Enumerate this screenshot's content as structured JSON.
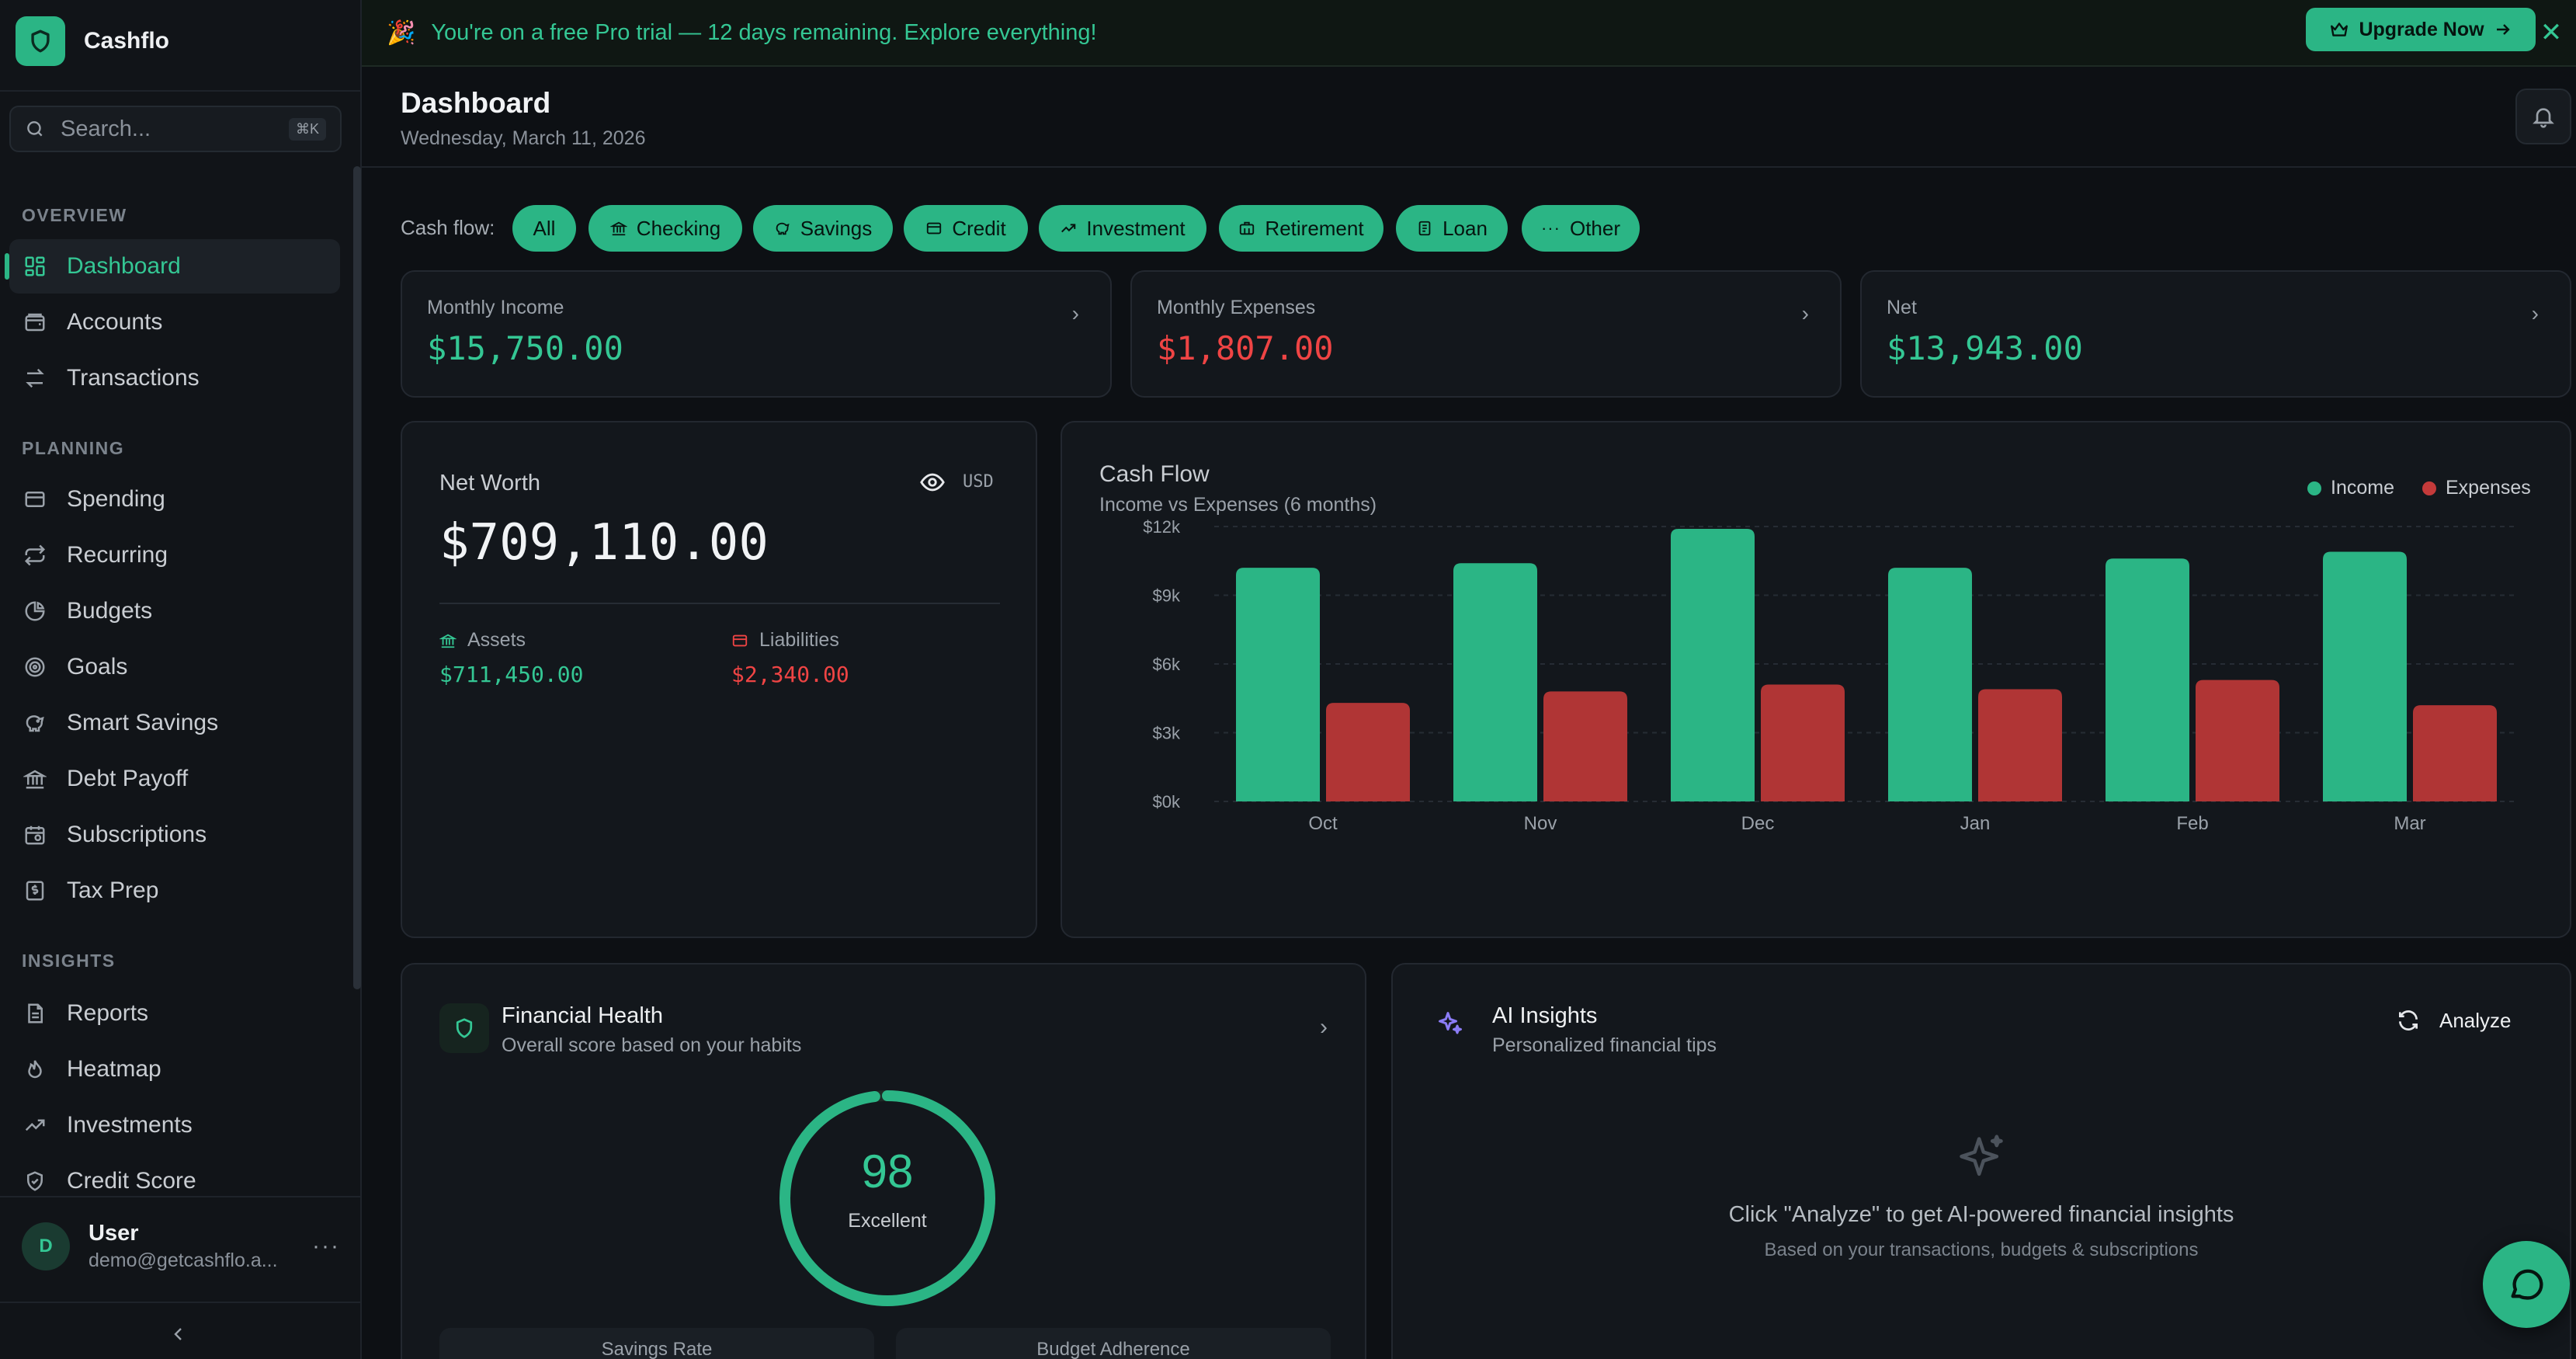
{
  "app": {
    "name": "Cashflo"
  },
  "search": {
    "placeholder": "Search...",
    "shortcut": "⌘K"
  },
  "sidebar": {
    "sections": [
      {
        "title": "OVERVIEW",
        "items": [
          {
            "label": "Dashboard",
            "icon": "dashboard-icon",
            "active": true
          },
          {
            "label": "Accounts",
            "icon": "wallet-icon"
          },
          {
            "label": "Transactions",
            "icon": "arrows-icon"
          }
        ]
      },
      {
        "title": "PLANNING",
        "items": [
          {
            "label": "Spending",
            "icon": "card-icon"
          },
          {
            "label": "Recurring",
            "icon": "repeat-icon"
          },
          {
            "label": "Budgets",
            "icon": "pie-icon"
          },
          {
            "label": "Goals",
            "icon": "target-icon"
          },
          {
            "label": "Smart Savings",
            "icon": "piggy-icon"
          },
          {
            "label": "Debt Payoff",
            "icon": "bank-icon"
          },
          {
            "label": "Subscriptions",
            "icon": "calendar-icon"
          },
          {
            "label": "Tax Prep",
            "icon": "receipt-icon"
          }
        ]
      },
      {
        "title": "INSIGHTS",
        "items": [
          {
            "label": "Reports",
            "icon": "document-icon"
          },
          {
            "label": "Heatmap",
            "icon": "flame-icon"
          },
          {
            "label": "Investments",
            "icon": "trend-icon"
          },
          {
            "label": "Credit Score",
            "icon": "shield-check-icon"
          }
        ]
      }
    ]
  },
  "user": {
    "initial": "D",
    "name": "User",
    "email": "demo@getcashflo.a..."
  },
  "banner": {
    "emoji": "🎉",
    "text": "You're on a free Pro trial — 12 days remaining. Explore everything!",
    "cta": "Upgrade Now"
  },
  "header": {
    "title": "Dashboard",
    "date": "Wednesday, March 11, 2026"
  },
  "filters": {
    "label": "Cash flow:",
    "chips": [
      "All",
      "Checking",
      "Savings",
      "Credit",
      "Investment",
      "Retirement",
      "Loan",
      "Other"
    ]
  },
  "stats": [
    {
      "label": "Monthly Income",
      "value": "$15,750.00",
      "tone": "green"
    },
    {
      "label": "Monthly Expenses",
      "value": "$1,807.00",
      "tone": "red"
    },
    {
      "label": "Net",
      "value": "$13,943.00",
      "tone": "green"
    }
  ],
  "net_worth": {
    "title": "Net Worth",
    "currency": "USD",
    "value": "$709,110.00",
    "assets_label": "Assets",
    "assets_value": "$711,450.00",
    "liabilities_label": "Liabilities",
    "liabilities_value": "$2,340.00"
  },
  "cash_flow_card": {
    "title": "Cash Flow",
    "subtitle": "Income vs Expenses (6 months)"
  },
  "chart_data": {
    "type": "bar",
    "title": "Cash Flow",
    "subtitle": "Income vs Expenses (6 months)",
    "categories": [
      "Oct",
      "Nov",
      "Dec",
      "Jan",
      "Feb",
      "Mar"
    ],
    "series": [
      {
        "name": "Income",
        "color": "#2bb585",
        "values": [
          10200,
          10400,
          11900,
          10200,
          10600,
          10900
        ]
      },
      {
        "name": "Expenses",
        "color": "#b03535",
        "values": [
          4300,
          4800,
          5100,
          4900,
          5300,
          4200
        ]
      }
    ],
    "ylim": [
      0,
      12000
    ],
    "yticks": [
      "$0k",
      "$3k",
      "$6k",
      "$9k",
      "$12k"
    ],
    "grid": true,
    "legend": "top-right"
  },
  "health": {
    "title": "Financial Health",
    "subtitle": "Overall score based on your habits",
    "score": "98",
    "score_value": 98,
    "rating": "Excellent",
    "metrics": [
      "Savings Rate",
      "Budget Adherence"
    ]
  },
  "ai": {
    "title": "AI Insights",
    "subtitle": "Personalized financial tips",
    "action": "Analyze",
    "empty_text": "Click \"Analyze\" to get AI-powered financial insights",
    "empty_sub": "Based on your transactions, budgets & subscriptions"
  },
  "colors": {
    "accent": "#2bb585",
    "income": "#34c794",
    "expense": "#ef4444"
  }
}
